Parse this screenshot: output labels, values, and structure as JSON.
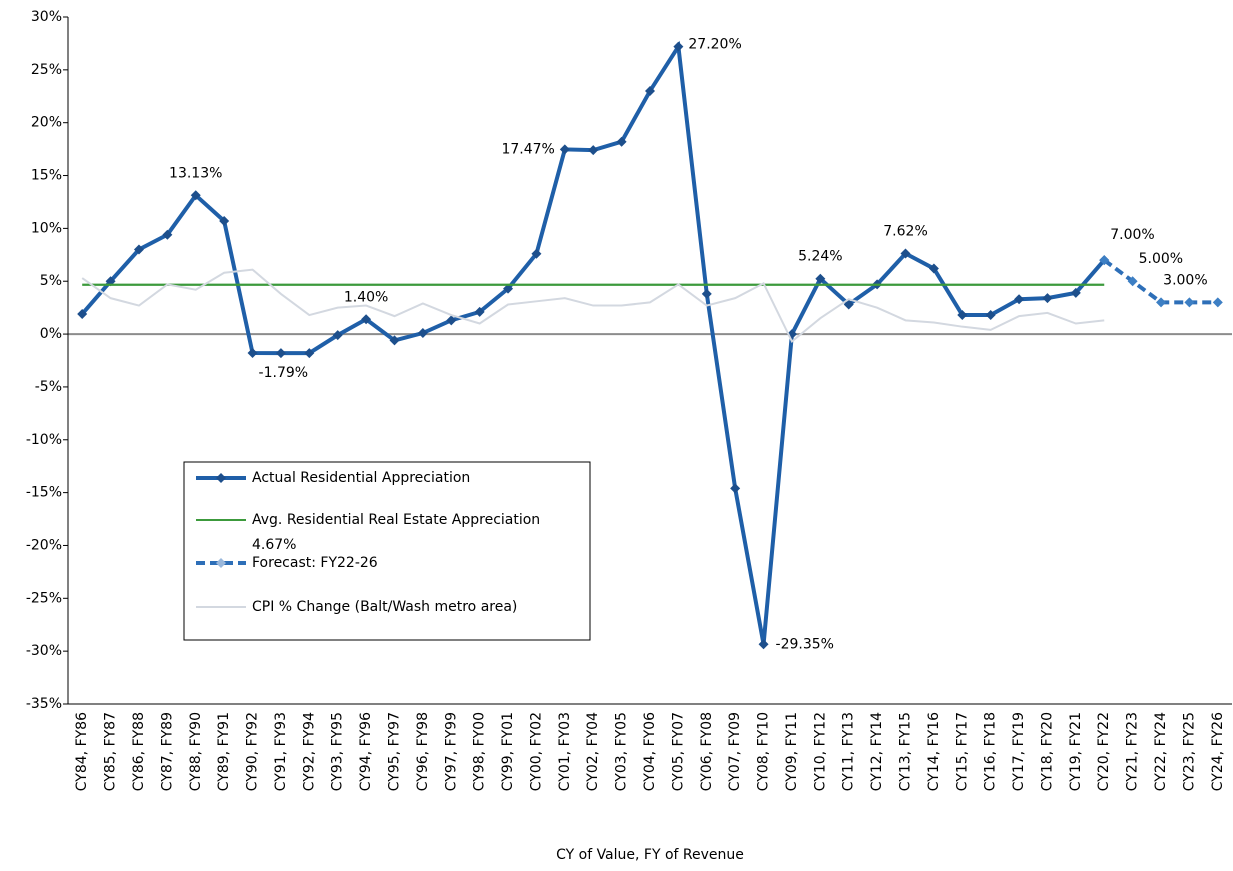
{
  "chart_data": {
    "type": "line",
    "x_label": "CY of Value, FY of Revenue",
    "categories": [
      "CY84, FY86",
      "CY85, FY87",
      "CY86, FY88",
      "CY87, FY89",
      "CY88, FY90",
      "CY89, FY91",
      "CY90, FY92",
      "CY91, FY93",
      "CY92, FY94",
      "CY93, FY95",
      "CY94, FY96",
      "CY95, FY97",
      "CY96, FY98",
      "CY97, FY99",
      "CY98, FY00",
      "CY99, FY01",
      "CY00, FY02",
      "CY01, FY03",
      "CY02, FY04",
      "CY03, FY05",
      "CY04, FY06",
      "CY05, FY07",
      "CY06, FY08",
      "CY07, FY09",
      "CY08, FY10",
      "CY09, FY11",
      "CY10, FY12",
      "CY11, FY13",
      "CY12, FY14",
      "CY13, FY15",
      "CY14, FY16",
      "CY15, FY17",
      "CY16, FY18",
      "CY17, FY19",
      "CY18, FY20",
      "CY19, FY21",
      "CY20, FY22",
      "CY21, FY23",
      "CY22, FY24",
      "CY23, FY25",
      "CY24, FY26"
    ],
    "series": [
      {
        "name": "Actual Residential Appreciation",
        "color": "#1f5fa8",
        "style": "solid",
        "markers": true,
        "values": [
          1.9,
          5.0,
          8.0,
          9.4,
          13.13,
          10.7,
          -1.79,
          -1.8,
          -1.8,
          -0.1,
          1.4,
          -0.6,
          0.1,
          1.3,
          2.1,
          4.3,
          7.6,
          17.47,
          17.4,
          18.2,
          23.0,
          27.2,
          3.8,
          -14.6,
          -29.35,
          0.0,
          5.24,
          2.8,
          4.7,
          7.62,
          6.2,
          1.8,
          1.8,
          3.3,
          3.4,
          3.9,
          7.0,
          null,
          null,
          null,
          null
        ],
        "value_labels": [
          null,
          null,
          null,
          null,
          "13.13%",
          null,
          "-1.79%",
          null,
          null,
          null,
          "1.40%",
          null,
          null,
          null,
          null,
          null,
          null,
          "17.47%",
          null,
          null,
          null,
          "27.20%",
          null,
          null,
          "-29.35%",
          null,
          "5.24%",
          null,
          null,
          "7.62%",
          null,
          null,
          null,
          null,
          null,
          null,
          null,
          null,
          null,
          null,
          null
        ]
      },
      {
        "name": "Avg. Residential Real Estate Appreciation 4.67%",
        "color": "#3c9a3c",
        "style": "solid",
        "markers": false,
        "values": [
          4.67,
          4.67,
          4.67,
          4.67,
          4.67,
          4.67,
          4.67,
          4.67,
          4.67,
          4.67,
          4.67,
          4.67,
          4.67,
          4.67,
          4.67,
          4.67,
          4.67,
          4.67,
          4.67,
          4.67,
          4.67,
          4.67,
          4.67,
          4.67,
          4.67,
          4.67,
          4.67,
          4.67,
          4.67,
          4.67,
          4.67,
          4.67,
          4.67,
          4.67,
          4.67,
          4.67,
          4.67,
          null,
          null,
          null,
          null
        ]
      },
      {
        "name": "Forecast: FY22-26",
        "color": "#2e6fb8",
        "style": "dashed",
        "markers": true,
        "values": [
          null,
          null,
          null,
          null,
          null,
          null,
          null,
          null,
          null,
          null,
          null,
          null,
          null,
          null,
          null,
          null,
          null,
          null,
          null,
          null,
          null,
          null,
          null,
          null,
          null,
          null,
          null,
          null,
          null,
          null,
          null,
          null,
          null,
          null,
          null,
          null,
          7.0,
          5.0,
          3.0,
          3.0,
          3.0
        ],
        "value_labels": [
          null,
          null,
          null,
          null,
          null,
          null,
          null,
          null,
          null,
          null,
          null,
          null,
          null,
          null,
          null,
          null,
          null,
          null,
          null,
          null,
          null,
          null,
          null,
          null,
          null,
          null,
          null,
          null,
          null,
          null,
          null,
          null,
          null,
          null,
          null,
          null,
          "7.00%",
          "5.00%",
          null,
          "3.00%",
          null
        ]
      },
      {
        "name": "CPI % Change (Balt/Wash metro area)",
        "color": "#d3d8e0",
        "style": "solid",
        "markers": false,
        "values": [
          5.3,
          3.4,
          2.7,
          4.7,
          4.2,
          5.8,
          6.1,
          3.8,
          1.8,
          2.5,
          2.7,
          1.7,
          2.9,
          1.8,
          1.0,
          2.8,
          3.1,
          3.4,
          2.7,
          2.7,
          3.0,
          4.7,
          2.7,
          3.4,
          4.8,
          -0.7,
          1.5,
          3.3,
          2.5,
          1.3,
          1.1,
          0.7,
          0.4,
          1.7,
          2.0,
          1.0,
          1.3,
          null,
          null,
          null,
          null
        ]
      }
    ],
    "ylim": [
      -35,
      30
    ],
    "yticks": [
      {
        "value": -35,
        "label": "-35%"
      },
      {
        "value": -30,
        "label": "-30%"
      },
      {
        "value": -25,
        "label": "-25%"
      },
      {
        "value": -20,
        "label": "-20%"
      },
      {
        "value": -15,
        "label": "-15%"
      },
      {
        "value": -10,
        "label": "-10%"
      },
      {
        "value": -5,
        "label": "-5%"
      },
      {
        "value": 0,
        "label": "0%"
      },
      {
        "value": 5,
        "label": "5%"
      },
      {
        "value": 10,
        "label": "10%"
      },
      {
        "value": 15,
        "label": "15%"
      },
      {
        "value": 20,
        "label": "20%"
      },
      {
        "value": 25,
        "label": "25%"
      },
      {
        "value": 30,
        "label": "30%"
      }
    ],
    "grid": false,
    "legend": "inside-lower-left"
  }
}
